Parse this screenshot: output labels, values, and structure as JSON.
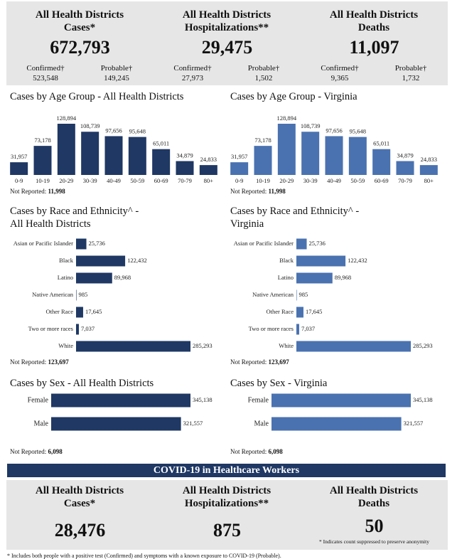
{
  "summary": [
    {
      "title": "All Health Districts Cases*",
      "total": "672,793",
      "confirmed_label": "Confirmed†",
      "confirmed": "523,548",
      "probable_label": "Probable†",
      "probable": "149,245"
    },
    {
      "title": "All Health Districts Hospitalizations**",
      "total": "29,475",
      "confirmed_label": "Confirmed†",
      "confirmed": "27,973",
      "probable_label": "Probable†",
      "probable": "1,502"
    },
    {
      "title": "All Health Districts Deaths",
      "total": "11,097",
      "confirmed_label": "Confirmed†",
      "confirmed": "9,365",
      "probable_label": "Probable†",
      "probable": "1,732"
    }
  ],
  "chart_data": [
    {
      "type": "bar",
      "title": "Cases by Age Group - All Health Districts",
      "categories": [
        "0-9",
        "10-19",
        "20-29",
        "30-39",
        "40-49",
        "50-59",
        "60-69",
        "70-79",
        "80+"
      ],
      "values": [
        31957,
        73178,
        128894,
        108739,
        97656,
        95648,
        65011,
        34879,
        24833
      ],
      "value_labels": [
        "31,957",
        "73,178",
        "128,894",
        "108,739",
        "97,656",
        "95,648",
        "65,011",
        "34,879",
        "24,833"
      ],
      "color": "#1f3864",
      "not_reported_label": "Not Reported:",
      "not_reported": "11,998"
    },
    {
      "type": "bar",
      "title": "Cases by Age Group - Virginia",
      "categories": [
        "0-9",
        "10-19",
        "20-29",
        "30-39",
        "40-49",
        "50-59",
        "60-69",
        "70-79",
        "80+"
      ],
      "values": [
        31957,
        73178,
        128894,
        108739,
        97656,
        95648,
        65011,
        34879,
        24833
      ],
      "value_labels": [
        "31,957",
        "73,178",
        "128,894",
        "108,739",
        "97,656",
        "95,648",
        "65,011",
        "34,879",
        "24,833"
      ],
      "color": "#4a72b0",
      "not_reported_label": "Not Reported:",
      "not_reported": "11,998"
    },
    {
      "type": "hbar",
      "title": "Cases by Race and Ethnicity^ - All Health Districts",
      "categories": [
        "Asian or Pacific Islander",
        "Black",
        "Latino",
        "Native American",
        "Other Race",
        "Two or more races",
        "White"
      ],
      "values": [
        25736,
        122432,
        89968,
        985,
        17645,
        7037,
        285293
      ],
      "value_labels": [
        "25,736",
        "122,432",
        "89,968",
        "985",
        "17,645",
        "7,037",
        "285,293"
      ],
      "color": "#1f3864",
      "not_reported_label": "Not Reported:",
      "not_reported": "123,697"
    },
    {
      "type": "hbar",
      "title": "Cases by Race and Ethnicity^ - Virginia",
      "categories": [
        "Asian or Pacific Islander",
        "Black",
        "Latino",
        "Native American",
        "Other Race",
        "Two or more races",
        "White"
      ],
      "values": [
        25736,
        122432,
        89968,
        985,
        17645,
        7037,
        285293
      ],
      "value_labels": [
        "25,736",
        "122,432",
        "89,968",
        "985",
        "17,645",
        "7,037",
        "285,293"
      ],
      "color": "#4a72b0",
      "not_reported_label": "Not Reported:",
      "not_reported": "123,697"
    },
    {
      "type": "hbar",
      "title": "Cases by Sex - All Health Districts",
      "categories": [
        "Female",
        "Male"
      ],
      "values": [
        345138,
        321557
      ],
      "value_labels": [
        "345,138",
        "321,557"
      ],
      "color": "#1f3864",
      "not_reported_label": "Not Reported:",
      "not_reported": "6,098"
    },
    {
      "type": "hbar",
      "title": "Cases by Sex - Virginia",
      "categories": [
        "Female",
        "Male"
      ],
      "values": [
        345138,
        321557
      ],
      "value_labels": [
        "345,138",
        "321,557"
      ],
      "color": "#4a72b0",
      "not_reported_label": "Not Reported:",
      "not_reported": "6,098"
    }
  ],
  "banner": "COVID-19 in Healthcare Workers",
  "healthcare_summary": [
    {
      "title": "All Health Districts Cases*",
      "total": "28,476"
    },
    {
      "title": "All Health Districts Hospitalizations**",
      "total": "875"
    },
    {
      "title": "All Health Districts Deaths",
      "total": "50",
      "note": "* Indicates count suppressed to preserve anonymity"
    }
  ],
  "footnote": "* Includes both people with a positive test (Confirmed) and symptoms with a known exposure to COVID-19 (Probable)."
}
